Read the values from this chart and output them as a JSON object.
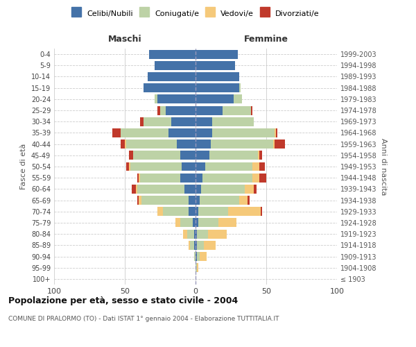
{
  "age_groups": [
    "100+",
    "95-99",
    "90-94",
    "85-89",
    "80-84",
    "75-79",
    "70-74",
    "65-69",
    "60-64",
    "55-59",
    "50-54",
    "45-49",
    "40-44",
    "35-39",
    "30-34",
    "25-29",
    "20-24",
    "15-19",
    "10-14",
    "5-9",
    "0-4"
  ],
  "birth_years": [
    "≤ 1903",
    "1904-1908",
    "1909-1913",
    "1914-1918",
    "1919-1923",
    "1924-1928",
    "1929-1933",
    "1934-1938",
    "1939-1943",
    "1944-1948",
    "1949-1953",
    "1954-1958",
    "1959-1963",
    "1964-1968",
    "1969-1973",
    "1974-1978",
    "1979-1983",
    "1984-1988",
    "1989-1993",
    "1994-1998",
    "1999-2003"
  ],
  "colors": {
    "celibi": "#4472a8",
    "coniugati": "#bdd2a6",
    "vedovi": "#f5c97a",
    "divorziati": "#c0392b"
  },
  "maschi": {
    "celibi": [
      0,
      0,
      0,
      1,
      1,
      2,
      5,
      5,
      8,
      11,
      10,
      11,
      13,
      19,
      17,
      21,
      27,
      37,
      34,
      29,
      33
    ],
    "coniugati": [
      0,
      0,
      1,
      3,
      5,
      9,
      18,
      33,
      33,
      28,
      36,
      33,
      36,
      34,
      20,
      4,
      2,
      0,
      0,
      0,
      0
    ],
    "vedovi": [
      0,
      0,
      0,
      1,
      3,
      3,
      4,
      2,
      1,
      1,
      1,
      0,
      1,
      0,
      0,
      0,
      0,
      0,
      0,
      0,
      0
    ],
    "divorziati": [
      0,
      0,
      0,
      0,
      0,
      0,
      0,
      1,
      3,
      1,
      2,
      3,
      3,
      6,
      2,
      2,
      0,
      0,
      0,
      0,
      0
    ]
  },
  "femmine": {
    "celibi": [
      0,
      0,
      1,
      1,
      1,
      2,
      2,
      3,
      4,
      5,
      7,
      10,
      11,
      12,
      12,
      19,
      27,
      31,
      31,
      28,
      30
    ],
    "coniugati": [
      0,
      1,
      2,
      5,
      8,
      14,
      21,
      28,
      31,
      35,
      33,
      34,
      44,
      44,
      29,
      20,
      6,
      1,
      0,
      0,
      0
    ],
    "vedovi": [
      0,
      1,
      5,
      8,
      13,
      13,
      23,
      6,
      6,
      5,
      5,
      1,
      1,
      1,
      0,
      0,
      0,
      0,
      0,
      0,
      0
    ],
    "divorziati": [
      0,
      0,
      0,
      0,
      0,
      0,
      1,
      1,
      2,
      5,
      4,
      2,
      7,
      1,
      0,
      1,
      0,
      0,
      0,
      0,
      0
    ]
  },
  "title": "Popolazione per età, sesso e stato civile - 2004",
  "subtitle": "COMUNE DI PRALORMO (TO) - Dati ISTAT 1° gennaio 2004 - Elaborazione TUTTITALIA.IT",
  "xlabel_left": "Maschi",
  "xlabel_right": "Femmine",
  "ylabel_left": "Fasce di età",
  "ylabel_right": "Anni di nascita",
  "legend_labels": [
    "Celibi/Nubili",
    "Coniugati/e",
    "Vedovi/e",
    "Divorziati/e"
  ],
  "xlim": 100,
  "background_color": "#ffffff"
}
